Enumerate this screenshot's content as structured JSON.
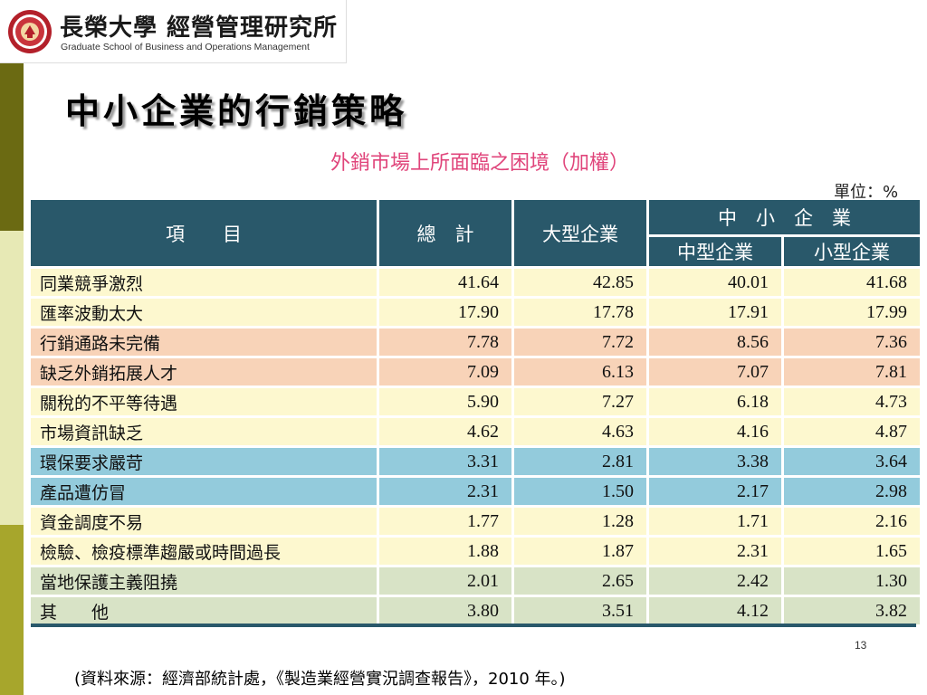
{
  "logo": {
    "title": "長榮大學 經營管理研究所",
    "subtitle": "Graduate School of Business and Operations Management"
  },
  "slide_title": "中小企業的行銷策略",
  "table": {
    "title": "外銷市場上所面臨之困境（加權）",
    "unit": "單位：%",
    "headers": {
      "item": "項　　目",
      "total": "總　計",
      "large": "大型企業",
      "sme_group": "中　小　企　業",
      "medium": "中型企業",
      "small": "小型企業"
    },
    "rows": [
      {
        "label": "同業競爭激烈",
        "total": "41.64",
        "large": "42.85",
        "medium": "40.01",
        "small": "41.68",
        "color": "#fdf8cf"
      },
      {
        "label": "匯率波動太大",
        "total": "17.90",
        "large": "17.78",
        "medium": "17.91",
        "small": "17.99",
        "color": "#fdf8cf"
      },
      {
        "label": "行銷通路未完備",
        "total": "7.78",
        "large": "7.72",
        "medium": "8.56",
        "small": "7.36",
        "color": "#f8d3b8"
      },
      {
        "label": "缺乏外銷拓展人才",
        "total": "7.09",
        "large": "6.13",
        "medium": "7.07",
        "small": "7.81",
        "color": "#f8d3b8"
      },
      {
        "label": "關稅的不平等待遇",
        "total": "5.90",
        "large": "7.27",
        "medium": "6.18",
        "small": "4.73",
        "color": "#fdf8cf"
      },
      {
        "label": "市場資訊缺乏",
        "total": "4.62",
        "large": "4.63",
        "medium": "4.16",
        "small": "4.87",
        "color": "#fdf8cf"
      },
      {
        "label": "環保要求嚴苛",
        "total": "3.31",
        "large": "2.81",
        "medium": "3.38",
        "small": "3.64",
        "color": "#93cbdc"
      },
      {
        "label": "產品遭仿冒",
        "total": "2.31",
        "large": "1.50",
        "medium": "2.17",
        "small": "2.98",
        "color": "#93cbdc"
      },
      {
        "label": "資金調度不易",
        "total": "1.77",
        "large": "1.28",
        "medium": "1.71",
        "small": "2.16",
        "color": "#fdf8cf"
      },
      {
        "label": "檢驗、檢疫標準趨嚴或時間過長",
        "total": "1.88",
        "large": "1.87",
        "medium": "2.31",
        "small": "1.65",
        "color": "#fdf8cf"
      },
      {
        "label": "當地保護主義阻撓",
        "total": "2.01",
        "large": "2.65",
        "medium": "2.42",
        "small": "1.30",
        "color": "#d8e3c6"
      },
      {
        "label": "其　　他",
        "total": "3.80",
        "large": "3.51",
        "medium": "4.12",
        "small": "3.82",
        "color": "#d8e3c6"
      }
    ]
  },
  "page_number": "13",
  "source": "(資料來源：經濟部統計處，《製造業經營實況調查報告》，2010 年。)",
  "colors": {
    "header_bg": "#29586a",
    "title_pink": "#e0457b",
    "band_dark": "#6b6a12",
    "band_light": "#e7e9b5",
    "band_mid": "#a7a62c"
  }
}
